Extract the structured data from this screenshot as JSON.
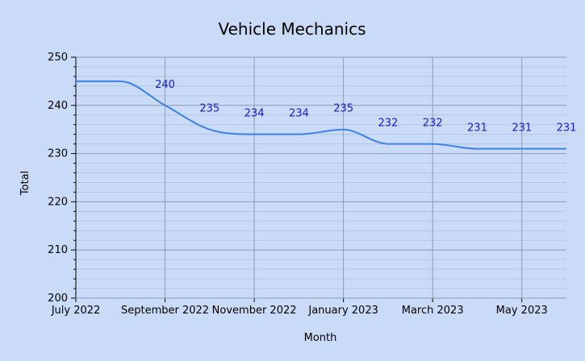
{
  "chart_data": {
    "type": "line",
    "title": "Vehicle Mechanics",
    "xlabel": "Month",
    "ylabel": "Total",
    "ylim": [
      200,
      250
    ],
    "y_ticks": [
      200,
      210,
      220,
      230,
      240,
      250
    ],
    "x": [
      "2022-07",
      "2022-08",
      "2022-09",
      "2022-10",
      "2022-11",
      "2022-12",
      "2023-01",
      "2023-02",
      "2023-03",
      "2023-04",
      "2023-05",
      "2023-06"
    ],
    "x_tick_labels": [
      {
        "x": "2022-07",
        "label": "July 2022"
      },
      {
        "x": "2022-09",
        "label": "September 2022"
      },
      {
        "x": "2022-11",
        "label": "November 2022"
      },
      {
        "x": "2023-01",
        "label": "January 2023"
      },
      {
        "x": "2023-03",
        "label": "March 2023"
      },
      {
        "x": "2023-05",
        "label": "May 2023"
      }
    ],
    "series": [
      {
        "values": [
          245,
          245,
          240,
          235,
          234,
          234,
          235,
          232,
          232,
          231,
          231,
          231
        ],
        "data_labels": [
          "",
          "",
          "240",
          "235",
          "234",
          "234",
          "235",
          "232",
          "232",
          "231",
          "231",
          "231"
        ]
      }
    ],
    "grid": true,
    "line_color": "#3f7fe8",
    "label_color": "#1a1ad4"
  }
}
